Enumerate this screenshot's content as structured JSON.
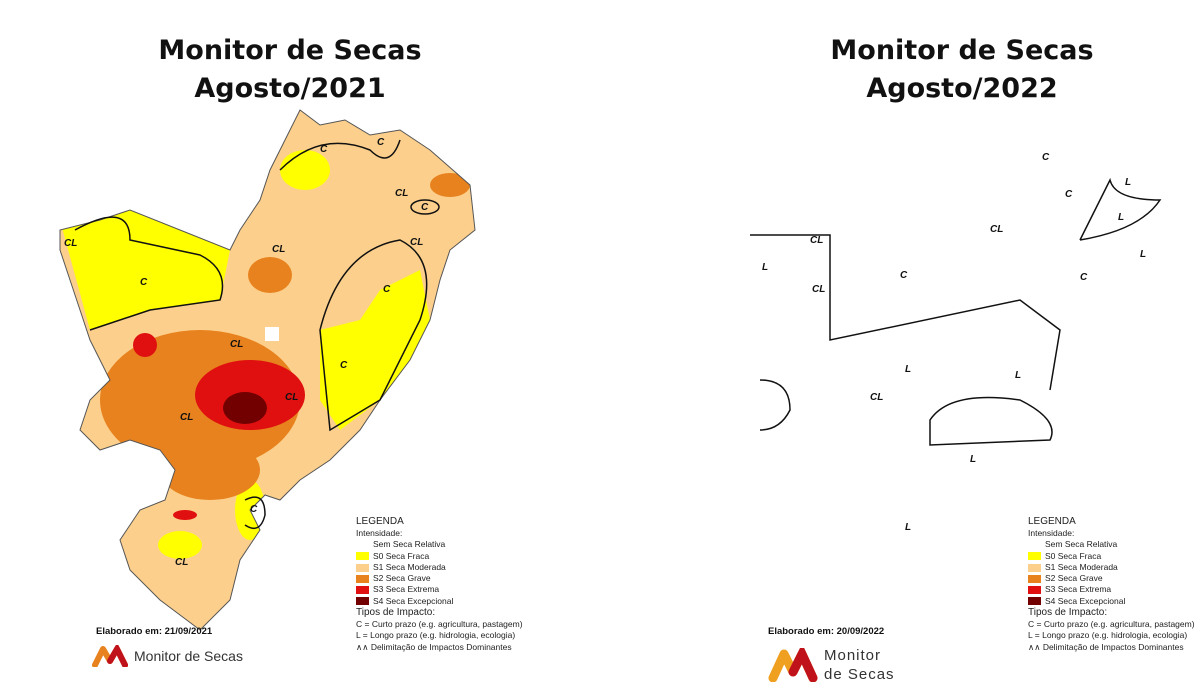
{
  "colors": {
    "none": "#ffffff",
    "s0": "#ffff00",
    "s1": "#fcd08c",
    "s2": "#e8821e",
    "s3": "#e01010",
    "s4": "#730000",
    "outline": "#222222"
  },
  "panels": [
    {
      "title_line1": "Monitor de Secas",
      "title_line2": "Agosto/2021",
      "elaborado": "Elaborado em: 21/09/2021",
      "logo_text": "Monitor de Secas",
      "labels": [
        "C",
        "CL",
        "C",
        "CL",
        "C",
        "CL",
        "C",
        "C",
        "CL",
        "C",
        "CL",
        "CL",
        "CL",
        "C",
        "CL"
      ]
    },
    {
      "title_line1": "Monitor de Secas",
      "title_line2": "Agosto/2022",
      "elaborado": "Elaborado em: 20/09/2022",
      "logo_text_line1": "Monitor",
      "logo_text_line2": "de Secas",
      "labels": [
        "C",
        "L",
        "C",
        "L",
        "CL",
        "L",
        "CL",
        "C",
        "C",
        "L",
        "CL",
        "L",
        "CL",
        "L",
        "L",
        "L"
      ]
    }
  ],
  "legend": {
    "heading": "LEGENDA",
    "intensity_heading": "Intensidade:",
    "items": [
      {
        "label": "Sem Seca Relativa",
        "color": "#ffffff"
      },
      {
        "label": "S0 Seca Fraca",
        "color": "#ffff00"
      },
      {
        "label": "S1 Seca Moderada",
        "color": "#fcd08c"
      },
      {
        "label": "S2 Seca Grave",
        "color": "#e8821e"
      },
      {
        "label": "S3 Seca Extrema",
        "color": "#e01010"
      },
      {
        "label": "S4 Seca Excepcional",
        "color": "#730000"
      }
    ],
    "impact_heading": "Tipos de Impacto:",
    "impact_c": "C = Curto prazo (e.g. agricultura, pastagem)",
    "impact_l": "L = Longo prazo (e.g. hidrologia, ecologia)",
    "delimitation": "Delimitação de Impactos Dominantes"
  }
}
